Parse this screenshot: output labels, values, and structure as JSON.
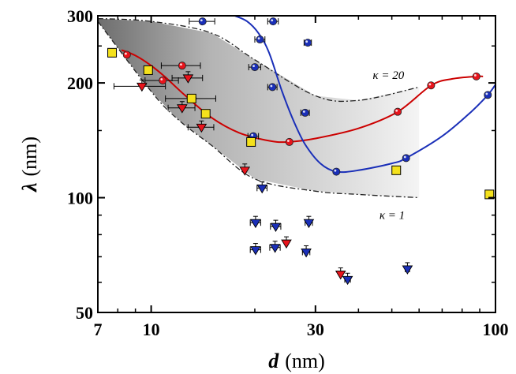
{
  "chart_data": {
    "type": "scatter",
    "title": "",
    "xlabel": {
      "symbol": "d",
      "unit": "(nm)"
    },
    "ylabel": {
      "symbol": "λ",
      "unit": "(nm)"
    },
    "x_scale": "log",
    "y_scale": "log",
    "xlim": [
      7,
      100
    ],
    "ylim": [
      50,
      300
    ],
    "x_ticks": [
      {
        "value": 7,
        "label": "7"
      },
      {
        "value": 10,
        "label": "10"
      },
      {
        "value": 30,
        "label": "30"
      },
      {
        "value": 100,
        "label": "100"
      }
    ],
    "y_ticks": [
      {
        "value": 50,
        "label": "50"
      },
      {
        "value": 100,
        "label": "100"
      },
      {
        "value": 200,
        "label": "200"
      },
      {
        "value": 300,
        "label": "300"
      }
    ],
    "grid": false,
    "legend": "none",
    "band": {
      "upper": {
        "x": [
          7,
          10,
          15,
          20,
          30,
          40,
          60
        ],
        "y": [
          295,
          290,
          270,
          230,
          185,
          180,
          195
        ]
      },
      "lower": {
        "x": [
          7,
          10,
          12,
          15,
          20,
          30,
          40,
          60
        ],
        "y": [
          290,
          190,
          160,
          137,
          112,
          104,
          102,
          100
        ]
      },
      "annotations": [
        {
          "text": "κ = 20",
          "x": 44,
          "y": 205
        },
        {
          "text": "κ = 1",
          "x": 46,
          "y": 88
        }
      ]
    },
    "series": [
      {
        "marker": "circle",
        "color": "#e8141c",
        "line_color": "#cc0000",
        "points": [
          {
            "x": 8.5,
            "y": 237,
            "xerr": 0
          },
          {
            "x": 10.8,
            "y": 203,
            "xerr": 1.2
          },
          {
            "x": 12.3,
            "y": 222,
            "xerr": 1.6
          },
          {
            "x": 13.2,
            "y": 182,
            "xerr": 2.2
          },
          {
            "x": 25.2,
            "y": 140,
            "xerr": 0
          },
          {
            "x": 52,
            "y": 168,
            "xerr": 0
          },
          {
            "x": 65,
            "y": 197,
            "xerr": 0
          },
          {
            "x": 88,
            "y": 208,
            "xerr": 0
          }
        ],
        "curve": {
          "x": [
            8.2,
            9,
            10,
            11,
            12.5,
            15,
            18,
            22,
            25,
            30,
            40,
            52,
            65,
            75,
            88,
            92
          ],
          "y": [
            244,
            236,
            222,
            207,
            186,
            162,
            148,
            141,
            140,
            143,
            152,
            168,
            197,
            205,
            208,
            208
          ]
        }
      },
      {
        "marker": "circle",
        "color": "#1a2fb8",
        "line_color": "#1a2fb8",
        "points": [
          {
            "x": 14.1,
            "y": 290,
            "xerr": 1.2
          },
          {
            "x": 22.6,
            "y": 290,
            "xerr": 0.8
          },
          {
            "x": 20.7,
            "y": 260,
            "xerr": 0.7
          },
          {
            "x": 28.5,
            "y": 255,
            "xerr": 0.7
          },
          {
            "x": 20,
            "y": 220,
            "xerr": 0.8
          },
          {
            "x": 22.5,
            "y": 195,
            "xerr": 0.7
          },
          {
            "x": 28,
            "y": 167,
            "xerr": 0.8
          },
          {
            "x": 19.8,
            "y": 145,
            "xerr": 0.7
          },
          {
            "x": 34.5,
            "y": 117,
            "xerr": 0
          },
          {
            "x": 55,
            "y": 127,
            "xerr": 0
          },
          {
            "x": 95,
            "y": 186,
            "xerr": 0
          }
        ],
        "curve": {
          "x": [
            17.5,
            19,
            20.5,
            22,
            24,
            26,
            28,
            31,
            34.5,
            40,
            50,
            55,
            70,
            85,
            95,
            100
          ],
          "y": [
            300,
            290,
            270,
            240,
            190,
            158,
            138,
            123,
            117,
            118,
            123,
            127,
            145,
            168,
            186,
            198
          ]
        }
      },
      {
        "marker": "square",
        "color": "#f4e11c",
        "points": [
          {
            "x": 7.7,
            "y": 240
          },
          {
            "x": 9.8,
            "y": 216
          },
          {
            "x": 13.1,
            "y": 182
          },
          {
            "x": 14.4,
            "y": 166
          },
          {
            "x": 19.5,
            "y": 140
          },
          {
            "x": 51.5,
            "y": 118
          },
          {
            "x": 96,
            "y": 102
          }
        ]
      },
      {
        "marker": "triangle-down",
        "color": "#e8141c",
        "points": [
          {
            "x": 9.4,
            "y": 196,
            "xerr": 1.6
          },
          {
            "x": 12.8,
            "y": 206,
            "xerr": 1.3
          },
          {
            "x": 12.3,
            "y": 172,
            "xerr": 1.1
          },
          {
            "x": 14.0,
            "y": 153,
            "xerr": 1.2
          },
          {
            "x": 18.7,
            "y": 118,
            "xerr": 0
          },
          {
            "x": 24.7,
            "y": 76,
            "xerr": 0
          },
          {
            "x": 35.5,
            "y": 63,
            "xerr": 0
          }
        ]
      },
      {
        "marker": "triangle-down",
        "color": "#1a2fb8",
        "points": [
          {
            "x": 21.0,
            "y": 106,
            "xerr": 0.7
          },
          {
            "x": 20.1,
            "y": 86,
            "xerr": 0.7
          },
          {
            "x": 23.0,
            "y": 84,
            "xerr": 0.8
          },
          {
            "x": 28.7,
            "y": 86,
            "xerr": 0.7
          },
          {
            "x": 20.1,
            "y": 73,
            "xerr": 0.7
          },
          {
            "x": 22.9,
            "y": 74,
            "xerr": 0.8
          },
          {
            "x": 28.2,
            "y": 72,
            "xerr": 0.7
          },
          {
            "x": 37.2,
            "y": 61,
            "xerr": 0.7
          },
          {
            "x": 55.5,
            "y": 65,
            "xerr": 0.8
          }
        ]
      }
    ]
  }
}
